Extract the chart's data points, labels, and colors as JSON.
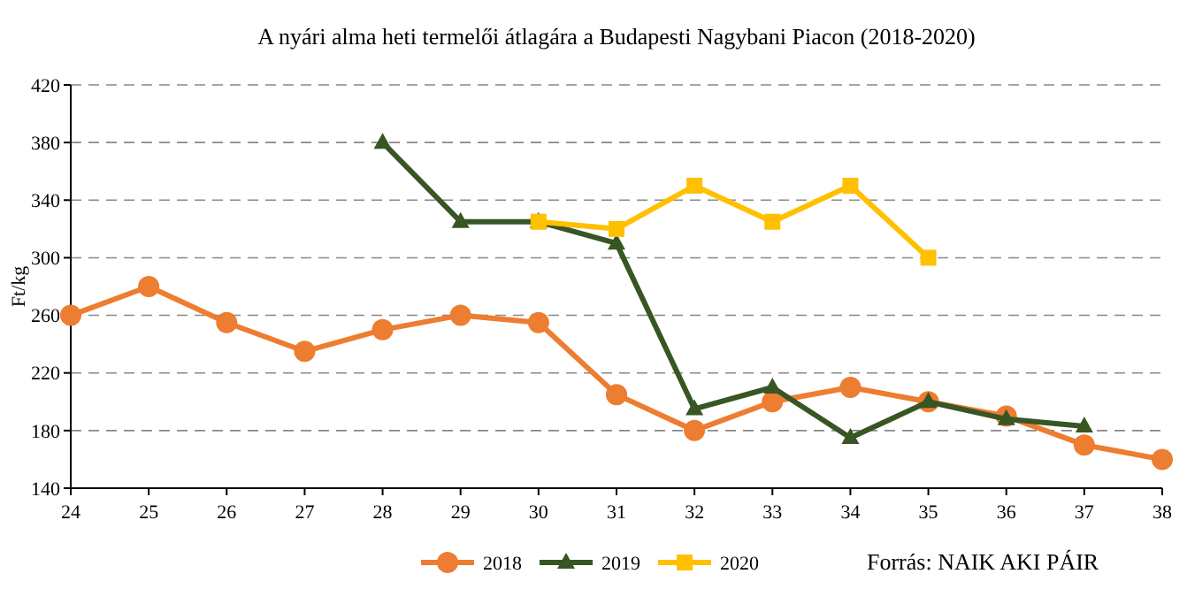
{
  "chart_data": {
    "type": "line",
    "title": "A nyári alma heti termelői átlagára a Budapesti Nagybani Piacon (2018-2020)",
    "ylabel": "Ft/kg",
    "annotations": [
      "Forrás: NAIK AKI PÁIR"
    ],
    "xlim": [
      24,
      38
    ],
    "xticks": [
      24,
      25,
      26,
      27,
      28,
      29,
      30,
      31,
      32,
      33,
      34,
      35,
      36,
      37,
      38
    ],
    "ylim": [
      140,
      420
    ],
    "yticks": [
      140,
      180,
      220,
      260,
      300,
      340,
      380,
      420
    ],
    "grid": "y",
    "legend": "bottom",
    "series": [
      {
        "name": "2018",
        "color": "#ed7d31",
        "marker": "circle",
        "x": [
          24,
          25,
          26,
          27,
          28,
          29,
          30,
          31,
          32,
          33,
          34,
          35,
          36,
          37,
          38
        ],
        "values": [
          260,
          280,
          255,
          235,
          250,
          260,
          255,
          205,
          180,
          200,
          210,
          200,
          190,
          170,
          160
        ]
      },
      {
        "name": "2019",
        "color": "#375623",
        "marker": "triangle",
        "x": [
          28,
          29,
          30,
          31,
          32,
          33,
          34,
          35,
          36,
          37
        ],
        "values": [
          380,
          325,
          325,
          310,
          195,
          210,
          175,
          200,
          188,
          183
        ]
      },
      {
        "name": "2020",
        "color": "#ffc000",
        "marker": "square",
        "x": [
          30,
          31,
          32,
          33,
          34,
          35
        ],
        "values": [
          325,
          320,
          350,
          325,
          350,
          300
        ]
      }
    ]
  }
}
